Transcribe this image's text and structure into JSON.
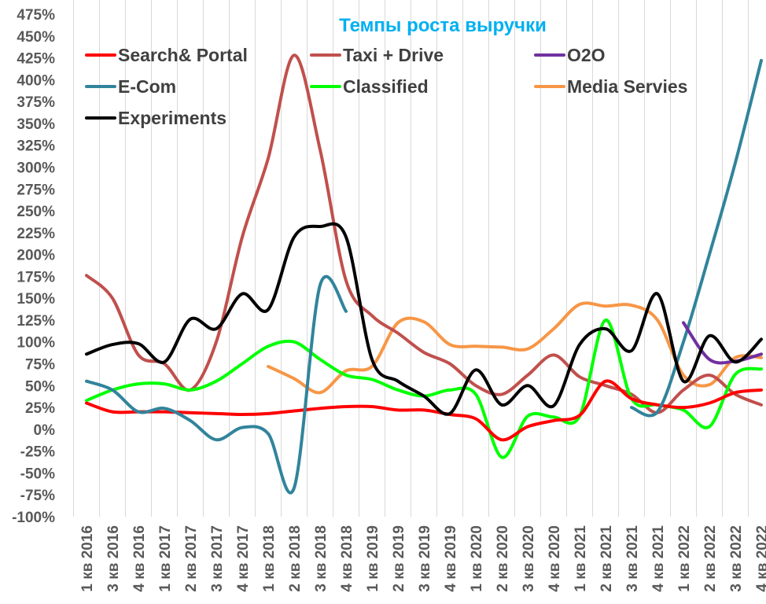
{
  "chart_data": {
    "type": "line",
    "title": "Темпы роста выручки",
    "title_color": "#00b0f0",
    "xlabel": "",
    "ylabel": "",
    "ylim": [
      -100,
      475
    ],
    "ytick_step": 25,
    "ytick_suffix": "%",
    "grid": "vertical",
    "legend_position": "top",
    "categories": [
      "1 кв 2016",
      "3 кв 2016",
      "4 кв 2016",
      "1 кв 2017",
      "2 кв 2017",
      "3 кв 2017",
      "4 кв 2017",
      "1 кв 2018",
      "2 кв 2018",
      "3 кв 2018",
      "4 кв 2018",
      "1 кв 2019",
      "2 кв 2019",
      "3 кв 2019",
      "4 кв 2019",
      "1 кв 2020",
      "2 кв 2020",
      "3 кв 2020",
      "4 кв 2020",
      "1 кв 2021",
      "2 кв 2021",
      "3 кв 2021",
      "4 кв 2021",
      "1 кв 2022",
      "2 кв 2022",
      "3 кв 2022",
      "4 кв 2022"
    ],
    "series": [
      {
        "name": "Search& Portal",
        "color": "#ff0000",
        "values": [
          30,
          20,
          20,
          20,
          19,
          18,
          17,
          18,
          21,
          24,
          26,
          26,
          22,
          22,
          17,
          12,
          -12,
          3,
          10,
          16,
          55,
          35,
          28,
          25,
          30,
          42,
          45
        ]
      },
      {
        "name": "Taxi + Drive",
        "color": "#c0504d",
        "values": [
          176,
          150,
          85,
          75,
          45,
          100,
          220,
          310,
          428,
          320,
          170,
          130,
          110,
          88,
          75,
          50,
          40,
          62,
          85,
          60,
          50,
          40,
          19,
          45,
          62,
          40,
          28
        ]
      },
      {
        "name": "O2O",
        "color": "#7030a0",
        "values": [
          null,
          null,
          null,
          null,
          null,
          null,
          null,
          null,
          null,
          null,
          null,
          null,
          null,
          null,
          null,
          null,
          null,
          null,
          null,
          null,
          null,
          null,
          null,
          122,
          80,
          78,
          86
        ]
      },
      {
        "name": "E-Com",
        "color": "#31849b",
        "values": [
          55,
          45,
          20,
          24,
          10,
          -12,
          2,
          -5,
          -67,
          165,
          135,
          null,
          null,
          null,
          null,
          null,
          null,
          null,
          null,
          null,
          null,
          25,
          20,
          100,
          200,
          305,
          422
        ]
      },
      {
        "name": "Classified",
        "color": "#00ff00",
        "values": [
          33,
          45,
          52,
          52,
          45,
          55,
          75,
          95,
          100,
          80,
          62,
          57,
          45,
          38,
          45,
          40,
          -32,
          15,
          14,
          15,
          125,
          35,
          28,
          22,
          3,
          63,
          69
        ]
      },
      {
        "name": "Media Servies",
        "color": "#f79646",
        "values": [
          null,
          null,
          null,
          null,
          null,
          null,
          null,
          72,
          58,
          42,
          67,
          72,
          122,
          123,
          97,
          95,
          94,
          92,
          115,
          143,
          141,
          142,
          125,
          62,
          51,
          82,
          82
        ]
      },
      {
        "name": "Experiments",
        "color": "#000000",
        "values": [
          86,
          97,
          98,
          77,
          126,
          115,
          155,
          137,
          220,
          232,
          220,
          80,
          55,
          38,
          18,
          68,
          28,
          50,
          27,
          97,
          115,
          90,
          155,
          55,
          107,
          77,
          103
        ]
      }
    ]
  }
}
